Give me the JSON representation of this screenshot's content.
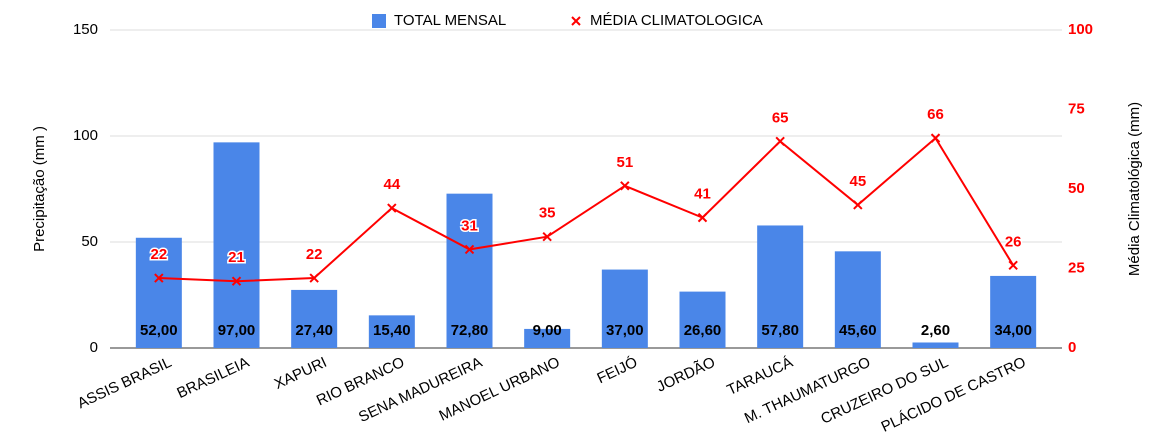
{
  "chart_data": {
    "type": "bar_line",
    "categories": [
      "ASSIS BRASIL",
      "BRASILEIA",
      "XAPURI",
      "RIO BRANCO",
      "SENA MADUREIRA",
      "MANOEL URBANO",
      "FEIJÓ",
      "JORDÃO",
      "TARAUCÁ",
      "M. THAUMATURGO",
      "CRUZEIRO DO SUL",
      "PLÁCIDO DE CASTRO"
    ],
    "series": [
      {
        "name": "TOTAL MENSAL",
        "color": "#4a86e8",
        "type": "bar",
        "values": [
          52,
          97,
          27.4,
          15.4,
          72.8,
          9,
          37,
          26.6,
          57.8,
          45.6,
          2.6,
          34
        ],
        "value_labels": [
          "52,00",
          "97,00",
          "27,40",
          "15,40",
          "72,80",
          "9,00",
          "37,00",
          "26,60",
          "57,80",
          "45,60",
          "2,60",
          "34,00"
        ]
      },
      {
        "name": "MÉDIA CLIMATOLOGICA",
        "color": "#ff0000",
        "type": "line",
        "axis": "y2",
        "values": [
          22,
          21,
          22,
          44,
          31,
          35,
          51,
          41,
          65,
          45,
          66,
          26
        ]
      }
    ],
    "ylabel": "Precipitação (mm )",
    "y2label": "Média Climatológica (mm)",
    "ylim": [
      0,
      150
    ],
    "yticks": [
      0,
      50,
      100,
      150
    ],
    "y2lim": [
      0,
      100
    ],
    "y2ticks": [
      0,
      25,
      50,
      75,
      100
    ],
    "legend": "top"
  }
}
